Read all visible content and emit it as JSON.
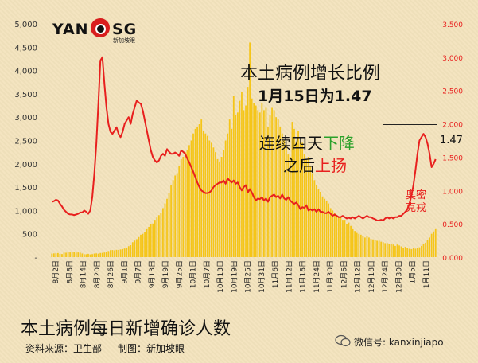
{
  "logo": {
    "wordmark_left": "YAN",
    "wordmark_right": "SG",
    "subtitle": "新加坡眼"
  },
  "headline": {
    "line1": "本土病例增长比例",
    "line2": "1月15日为1.47"
  },
  "trend_note": {
    "line1_prefix": "连续四天",
    "line1_highlight": "下降",
    "line2_prefix": "之后",
    "line2_highlight": "上扬"
  },
  "omicron_label": "奥密克戎",
  "latest_value": "1.47",
  "title": "本土病例每日新增确诊人数",
  "source": "资料来源：卫生部",
  "credit": "制图：新加坡眼",
  "watermark": "微信号: kanxinjiapo",
  "colors": {
    "bars": "#f5c518",
    "line": "#e8201e",
    "left_axis_text": "#333333",
    "right_axis_text": "#e8201e"
  },
  "chart_data": {
    "type": "bar",
    "grid": false,
    "x_labels": [
      "8月2日",
      "8月8日",
      "8月14日",
      "8月20日",
      "8月26日",
      "9月1日",
      "9月7日",
      "9月13日",
      "9月19日",
      "9月25日",
      "10月1日",
      "10月7日",
      "10月13日",
      "10月19日",
      "10月25日",
      "10月31日",
      "11月6日",
      "11月12日",
      "11月18日",
      "11月24日",
      "11月30日",
      "12月6日",
      "12月12日",
      "12月18日",
      "12月24日",
      "12月30日",
      "1月5日",
      "1月11日"
    ],
    "left_axis": {
      "range": [
        0,
        5000
      ],
      "ticks": [
        "-",
        "500",
        "1,000",
        "1,500",
        "2,000",
        "2,500",
        "3,000",
        "3,500",
        "4,000",
        "4,500",
        "5,000"
      ]
    },
    "right_axis": {
      "range": [
        0,
        3.5
      ],
      "ticks": [
        "0.000",
        "0.500",
        "1.000",
        "1.500",
        "2.000",
        "2.500",
        "3.000",
        "3.500"
      ]
    },
    "series": [
      {
        "kind": "bar",
        "axis": "left",
        "values": [
          75,
          80,
          82,
          88,
          70,
          66,
          96,
          95,
          104,
          101,
          102,
          114,
          98,
          100,
          96,
          78,
          61,
          62,
          70,
          58,
          64,
          76,
          80,
          74,
          88,
          92,
          99,
          113,
          130,
          150,
          152,
          146,
          157,
          155,
          165,
          172,
          185,
          205,
          235,
          257,
          320,
          354,
          385,
          430,
          480,
          500,
          530,
          600,
          650,
          700,
          720,
          800,
          850,
          900,
          950,
          1050,
          1150,
          1250,
          1380,
          1550,
          1650,
          1750,
          1800,
          1950,
          2100,
          2150,
          2250,
          2300,
          2400,
          2500,
          2650,
          2750,
          2800,
          2850,
          2950,
          2700,
          2650,
          2600,
          2500,
          2450,
          2350,
          2250,
          2100,
          2050,
          2150,
          2300,
          2500,
          2650,
          2950,
          2750,
          3450,
          3050,
          3100,
          3350,
          3550,
          3150,
          3250,
          3650,
          4600,
          3400,
          3300,
          3250,
          3150,
          3100,
          3300,
          3150,
          3200,
          2800,
          3050,
          3200,
          3150,
          3000,
          2950,
          2800,
          2650,
          2500,
          2400,
          2200,
          2150,
          2900,
          2750,
          2450,
          2700,
          2450,
          2450,
          2200,
          2100,
          2150,
          1950,
          1800,
          1650,
          1550,
          1450,
          1400,
          1300,
          1250,
          1200,
          1150,
          1050,
          1000,
          950,
          900,
          850,
          850,
          800,
          800,
          700,
          740,
          670,
          600,
          560,
          520,
          500,
          480,
          450,
          420,
          450,
          420,
          390,
          380,
          360,
          350,
          350,
          330,
          320,
          300,
          300,
          280,
          280,
          270,
          240,
          270,
          250,
          230,
          200,
          220,
          200,
          180,
          170,
          190,
          180,
          200,
          210,
          240,
          280,
          310,
          360,
          420,
          500,
          550,
          600
        ]
      },
      {
        "kind": "line",
        "axis": "right",
        "values": [
          0.83,
          0.84,
          0.86,
          0.85,
          0.8,
          0.76,
          0.71,
          0.68,
          0.65,
          0.64,
          0.64,
          0.63,
          0.64,
          0.65,
          0.67,
          0.67,
          0.7,
          0.68,
          0.65,
          0.7,
          0.9,
          1.25,
          1.7,
          2.3,
          2.95,
          3.0,
          2.6,
          2.25,
          2.0,
          1.88,
          1.85,
          1.9,
          1.95,
          1.85,
          1.8,
          1.88,
          2.0,
          2.05,
          2.1,
          2.0,
          2.15,
          2.25,
          2.35,
          2.32,
          2.3,
          2.2,
          2.05,
          1.9,
          1.75,
          1.6,
          1.5,
          1.45,
          1.42,
          1.45,
          1.52,
          1.55,
          1.52,
          1.62,
          1.58,
          1.55,
          1.55,
          1.57,
          1.55,
          1.52,
          1.6,
          1.58,
          1.55,
          1.48,
          1.42,
          1.35,
          1.28,
          1.2,
          1.12,
          1.05,
          1.0,
          0.98,
          0.96,
          0.96,
          0.97,
          1.0,
          1.05,
          1.08,
          1.1,
          1.12,
          1.12,
          1.15,
          1.1,
          1.18,
          1.15,
          1.12,
          1.15,
          1.1,
          1.12,
          1.05,
          1.0,
          1.05,
          1.08,
          0.97,
          1.02,
          0.97,
          0.9,
          0.85,
          0.88,
          0.87,
          0.9,
          0.85,
          0.88,
          0.83,
          0.9,
          0.92,
          0.94,
          0.9,
          0.92,
          0.88,
          0.94,
          0.88,
          0.86,
          0.9,
          0.85,
          0.82,
          0.8,
          0.82,
          0.78,
          0.72,
          0.75,
          0.74,
          0.78,
          0.7,
          0.72,
          0.7,
          0.72,
          0.68,
          0.72,
          0.68,
          0.68,
          0.66,
          0.66,
          0.68,
          0.65,
          0.62,
          0.64,
          0.62,
          0.6,
          0.6,
          0.62,
          0.6,
          0.58,
          0.59,
          0.58,
          0.6,
          0.58,
          0.6,
          0.62,
          0.6,
          0.58,
          0.6,
          0.62,
          0.6,
          0.6,
          0.58,
          0.57,
          0.55,
          0.55,
          0.56,
          0.55,
          0.58,
          0.6,
          0.58,
          0.6,
          0.58,
          0.6,
          0.6,
          0.62,
          0.62,
          0.65,
          0.68,
          0.72,
          0.8,
          0.92,
          1.08,
          1.3,
          1.55,
          1.75,
          1.8,
          1.85,
          1.8,
          1.7,
          1.55,
          1.35,
          1.4,
          1.47
        ]
      }
    ]
  }
}
